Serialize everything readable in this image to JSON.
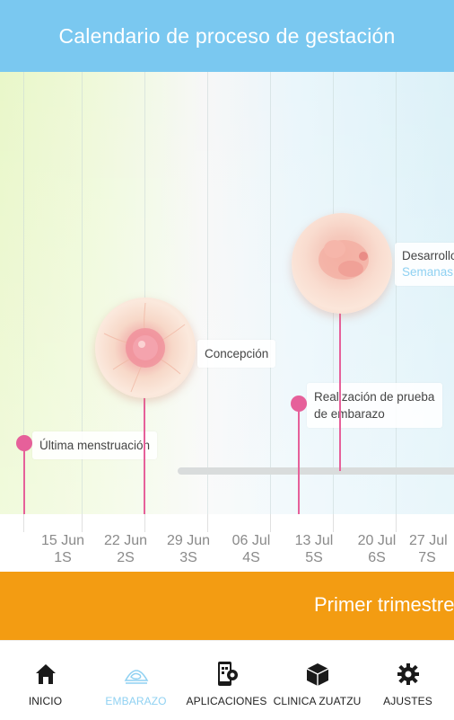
{
  "header": {
    "title": "Calendario de proceso de gestación"
  },
  "events": {
    "ultima": "Última menstruación",
    "concepcion": "Concepción",
    "prueba": "Realización de prueba de embarazo",
    "desarrollo_title": "Desarrollo",
    "desarrollo_sub": "Semanas"
  },
  "axis": {
    "ticks": [
      {
        "date": "15 Jun",
        "week": "1S"
      },
      {
        "date": "22 Jun",
        "week": "2S"
      },
      {
        "date": "29 Jun",
        "week": "3S"
      },
      {
        "date": "06 Jul",
        "week": "4S"
      },
      {
        "date": "13 Jul",
        "week": "5S"
      },
      {
        "date": "20 Jul",
        "week": "6S"
      },
      {
        "date": "27 Jul",
        "week": "7S"
      }
    ]
  },
  "trimester": {
    "label": "Primer trimestre"
  },
  "nav": {
    "items": [
      {
        "label": "INICIO",
        "icon": "home-icon"
      },
      {
        "label": "EMBARAZO",
        "icon": "ultrasound-icon"
      },
      {
        "label": "APLICACIONES",
        "icon": "apps-phone-icon"
      },
      {
        "label": "CLINICA ZUATZU",
        "icon": "clinic-box-icon"
      },
      {
        "label": "AJUSTES",
        "icon": "settings-gear-icon"
      }
    ]
  },
  "colors": {
    "header": "#7ac8f0",
    "accent_pink": "#e6609a",
    "trimester": "#f39c12",
    "nav_active": "#8fd1f2"
  }
}
